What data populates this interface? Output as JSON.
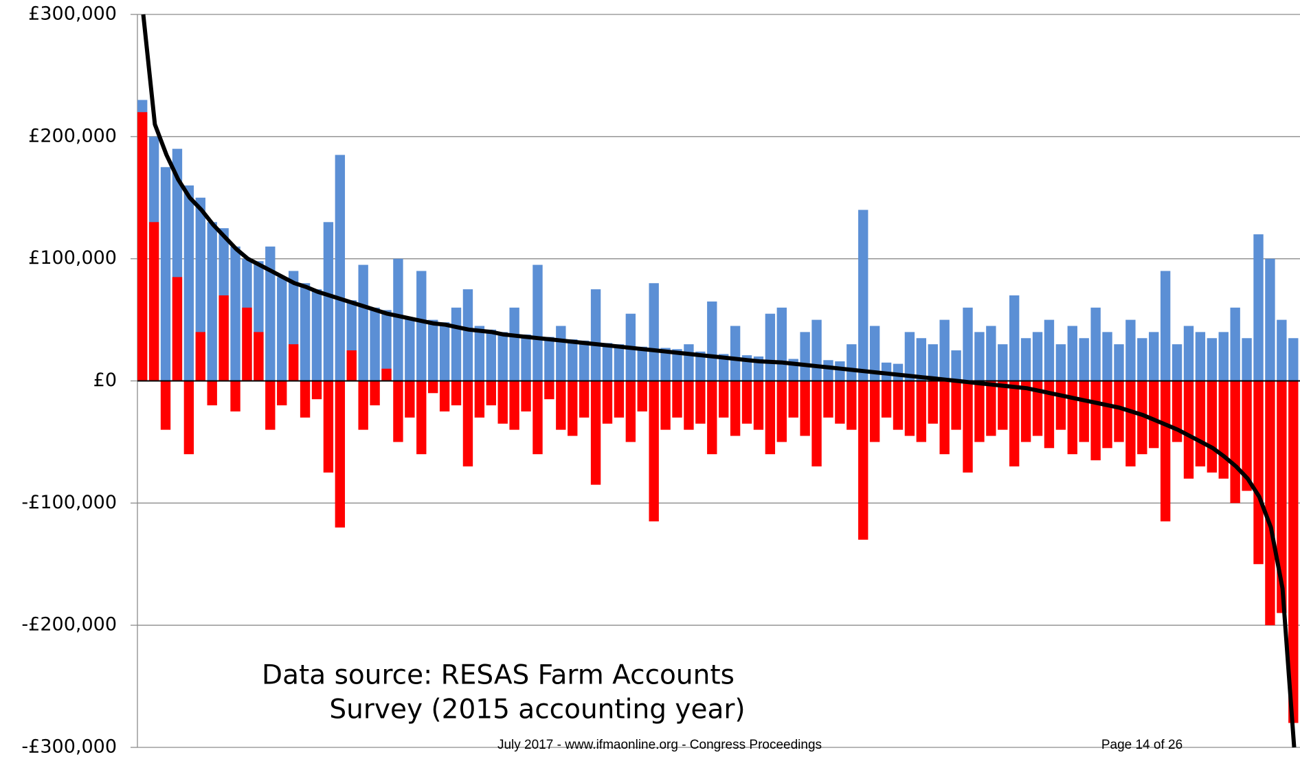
{
  "chart_data": {
    "type": "bar",
    "ylim": [
      -300000,
      300000
    ],
    "yticks": [
      {
        "value": -300000,
        "label": "-£300,000"
      },
      {
        "value": -200000,
        "label": "-£200,000"
      },
      {
        "value": -100000,
        "label": "-£100,000"
      },
      {
        "value": 0,
        "label": "£0"
      },
      {
        "value": 100000,
        "label": "£100,000"
      },
      {
        "value": 200000,
        "label": "£200,000"
      },
      {
        "value": 300000,
        "label": "£300,000"
      }
    ],
    "grid": true,
    "annotation": [
      "Data source: RESAS Farm Accounts",
      "Survey (2015 accounting year)"
    ],
    "series": [
      {
        "color": "#5b8fd5",
        "values": [
          230000,
          200000,
          175000,
          190000,
          160000,
          150000,
          130000,
          125000,
          110000,
          100000,
          98000,
          110000,
          85000,
          90000,
          80000,
          75000,
          130000,
          185000,
          66000,
          95000,
          60000,
          58000,
          100000,
          52000,
          90000,
          50000,
          48000,
          60000,
          75000,
          45000,
          42000,
          40000,
          60000,
          38000,
          95000,
          36000,
          45000,
          34000,
          33000,
          75000,
          31000,
          30000,
          55000,
          28000,
          80000,
          27000,
          26000,
          30000,
          24000,
          65000,
          22000,
          45000,
          21000,
          20000,
          55000,
          60000,
          18000,
          40000,
          50000,
          17000,
          16000,
          30000,
          140000,
          45000,
          15000,
          14000,
          40000,
          35000,
          30000,
          50000,
          25000,
          60000,
          40000,
          45000,
          30000,
          70000,
          35000,
          40000,
          50000,
          30000,
          45000,
          35000,
          60000,
          40000,
          30000,
          50000,
          35000,
          40000,
          90000,
          30000,
          45000,
          40000,
          35000,
          40000,
          60000,
          35000,
          120000,
          100000,
          50000,
          35000
        ]
      },
      {
        "color": "#ff0000",
        "values": [
          220000,
          130000,
          -40000,
          85000,
          -60000,
          40000,
          -20000,
          70000,
          -25000,
          60000,
          40000,
          -40000,
          -20000,
          30000,
          -30000,
          -15000,
          -75000,
          -120000,
          25000,
          -40000,
          -20000,
          10000,
          -50000,
          -30000,
          -60000,
          -10000,
          -25000,
          -20000,
          -70000,
          -30000,
          -20000,
          -35000,
          -40000,
          -25000,
          -60000,
          -15000,
          -40000,
          -45000,
          -30000,
          -85000,
          -35000,
          -30000,
          -50000,
          -25000,
          -115000,
          -40000,
          -30000,
          -40000,
          -35000,
          -60000,
          -30000,
          -45000,
          -35000,
          -40000,
          -60000,
          -50000,
          -30000,
          -45000,
          -70000,
          -30000,
          -35000,
          -40000,
          -130000,
          -50000,
          -30000,
          -40000,
          -45000,
          -50000,
          -35000,
          -60000,
          -40000,
          -75000,
          -50000,
          -45000,
          -40000,
          -70000,
          -50000,
          -45000,
          -55000,
          -40000,
          -60000,
          -50000,
          -65000,
          -55000,
          -50000,
          -70000,
          -60000,
          -55000,
          -115000,
          -50000,
          -80000,
          -70000,
          -75000,
          -80000,
          -100000,
          -90000,
          -150000,
          -200000,
          -190000,
          -280000
        ]
      },
      {
        "type": "line",
        "color": "#000000",
        "values": [
          300000,
          210000,
          185000,
          165000,
          150000,
          140000,
          128000,
          118000,
          108000,
          100000,
          95000,
          90000,
          85000,
          80000,
          77000,
          73000,
          70000,
          67000,
          64000,
          61000,
          58000,
          55000,
          53000,
          51000,
          49000,
          47000,
          46000,
          44000,
          42000,
          41000,
          40000,
          38000,
          37000,
          36000,
          35000,
          34000,
          33000,
          32000,
          31000,
          30000,
          29000,
          28000,
          27000,
          26000,
          25000,
          24000,
          23000,
          22000,
          21000,
          20000,
          19000,
          18000,
          17000,
          16000,
          15500,
          15000,
          14000,
          13000,
          12000,
          11000,
          10000,
          9000,
          8000,
          7000,
          6000,
          5000,
          4000,
          3000,
          2000,
          1000,
          0,
          -1000,
          -2000,
          -3000,
          -4000,
          -5000,
          -6000,
          -8000,
          -10000,
          -12000,
          -14000,
          -16000,
          -18000,
          -20000,
          -22000,
          -25000,
          -28000,
          -32000,
          -36000,
          -40000,
          -45000,
          -50000,
          -55000,
          -62000,
          -70000,
          -80000,
          -95000,
          -120000,
          -170000,
          -300000
        ]
      }
    ]
  },
  "footer": {
    "left": "July 2017 - www.ifmaonline.org - Congress Proceedings",
    "right": "Page 14 of 26"
  }
}
